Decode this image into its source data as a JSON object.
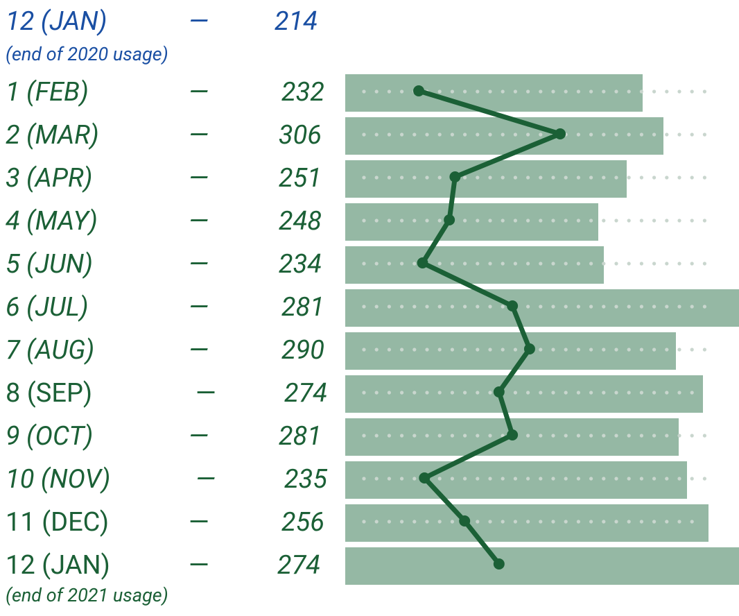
{
  "chart_data": {
    "type": "line",
    "start": {
      "label": "12 (JAN)",
      "value": 214,
      "note": "(end of 2020 usage)"
    },
    "separator": "—",
    "categories": [
      "1 (FEB)",
      "2 (MAR)",
      "3 (APR)",
      "4 (MAY)",
      "5 (JUN)",
      "6 (JUL)",
      "7 (AUG)",
      "8 (SEP)",
      "9 (OCT)",
      "10 (NOV)",
      "11 (DEC)",
      "12 (JAN)"
    ],
    "values": [
      232,
      306,
      251,
      248,
      234,
      281,
      290,
      274,
      281,
      235,
      256,
      274
    ],
    "end_note": "(end of 2021 usage)",
    "color": "#1b6036",
    "start_color": "#1a4fa3"
  }
}
